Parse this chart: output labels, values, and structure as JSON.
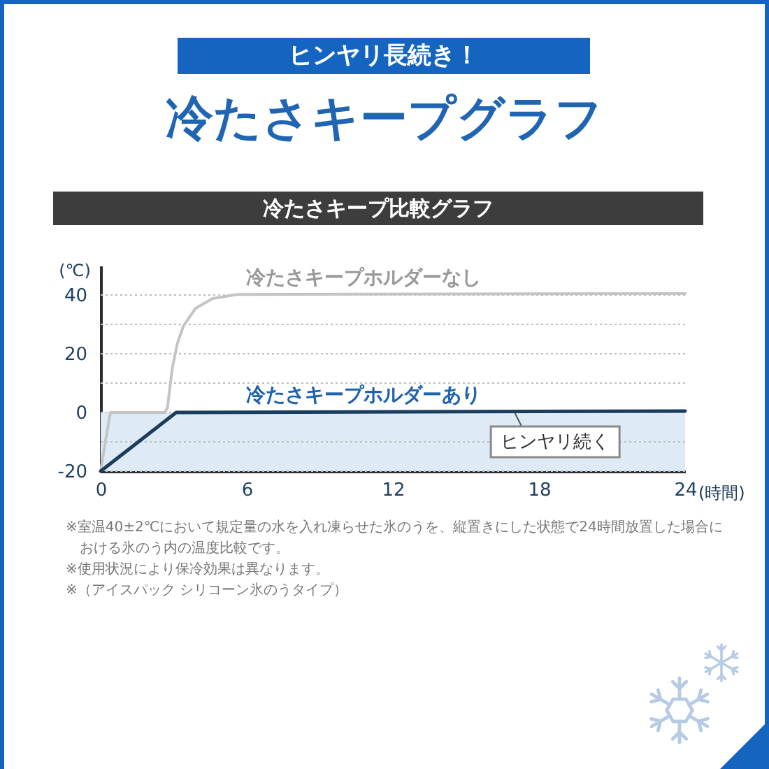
{
  "chart_data": {
    "type": "line",
    "title": "冷たさキープグラフ",
    "subtitle": "ヒンヤリ長続き！",
    "xlabel": "(時間)",
    "ylabel": "(℃)",
    "series": [
      {
        "name": "冷たさキープホルダーなし",
        "color": "#c4c4c4",
        "x": [
          0,
          0.15,
          0.4,
          2.65,
          2.75,
          2.85,
          2.95,
          3.15,
          3.4,
          3.9,
          4.6,
          5.6,
          24
        ],
        "values": [
          -20,
          -12,
          0,
          0,
          2,
          9,
          15.5,
          23.5,
          29.5,
          35.5,
          38.8,
          40.2,
          40.5
        ]
      },
      {
        "name": "冷たさキープホルダーあり",
        "color": "#1b3d5c",
        "x": [
          0,
          3.1,
          24
        ],
        "values": [
          -20,
          0,
          0.5
        ]
      }
    ],
    "xlim": [
      0,
      24
    ],
    "xticks": [
      0,
      6,
      12,
      18,
      24
    ],
    "ylim": [
      -20,
      50
    ],
    "yticks": [
      -20,
      {
        "value": -10,
        "label": null
      },
      0,
      {
        "value": 10,
        "label": null
      },
      20,
      {
        "value": 30,
        "label": null
      },
      40
    ],
    "grid": "y",
    "line_style": "solid",
    "bands": [
      {
        "axis": "y",
        "from": -20,
        "to": 0,
        "color": "#deeaf6"
      }
    ],
    "annotations": [
      "冷たさキープ比較グラフ",
      {
        "text": "ヒンヤリ続く",
        "x": 17,
        "y": 0
      },
      "※室温40±2℃において規定量の水を入れ凍らせた氷のうを、縦置きにした状態で24時間放置した場合における氷のう内の温度比較です。",
      "※使用状況により保冷効果は異なります。",
      "※（アイスパック シリコーン氷のうタイプ）"
    ]
  }
}
